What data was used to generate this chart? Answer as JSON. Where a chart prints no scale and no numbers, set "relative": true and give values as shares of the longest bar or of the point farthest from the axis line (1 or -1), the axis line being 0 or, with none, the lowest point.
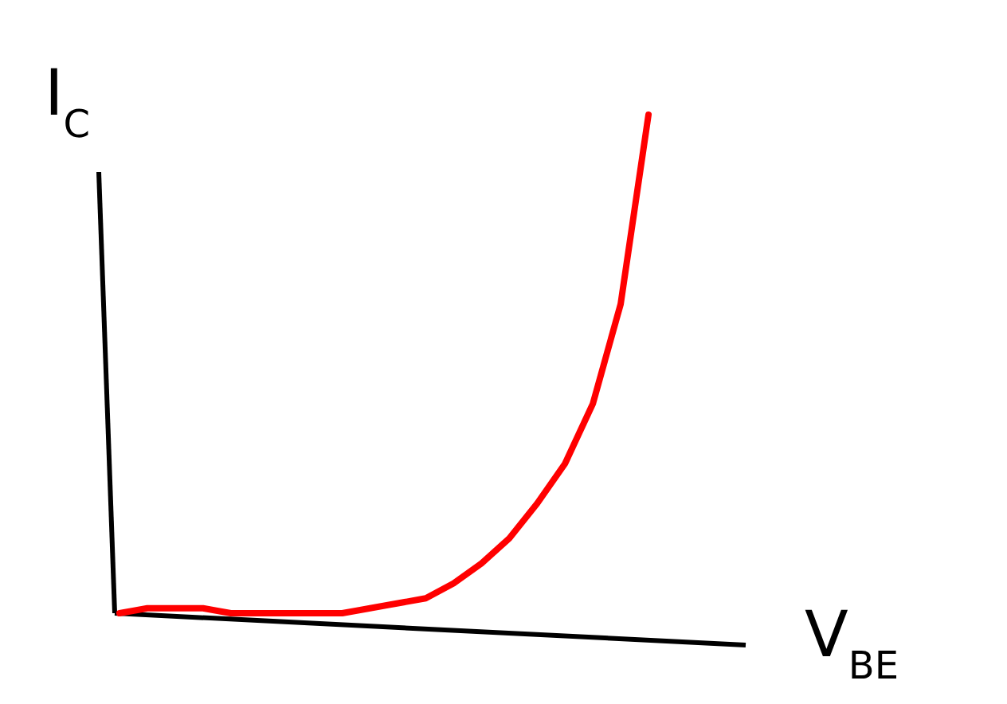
{
  "chart_data": {
    "type": "line",
    "relative": true,
    "xlabel": "V$_{BE}$",
    "ylabel": "I$_{C}$",
    "categories": [
      null,
      null,
      null,
      null,
      null,
      null,
      null,
      null,
      null,
      null,
      null,
      null,
      null,
      null,
      null,
      null,
      null,
      null,
      null,
      null
    ],
    "series": [
      {
        "color": "#ff0000",
        "values": [
          0,
          0.01,
          0.01,
          0.01,
          0,
          0,
          0,
          0,
          0,
          0.01,
          0.02,
          0.03,
          0.06,
          0.1,
          0.15,
          0.22,
          0.3,
          0.42,
          0.62,
          1
        ]
      }
    ],
    "grid": false
  }
}
